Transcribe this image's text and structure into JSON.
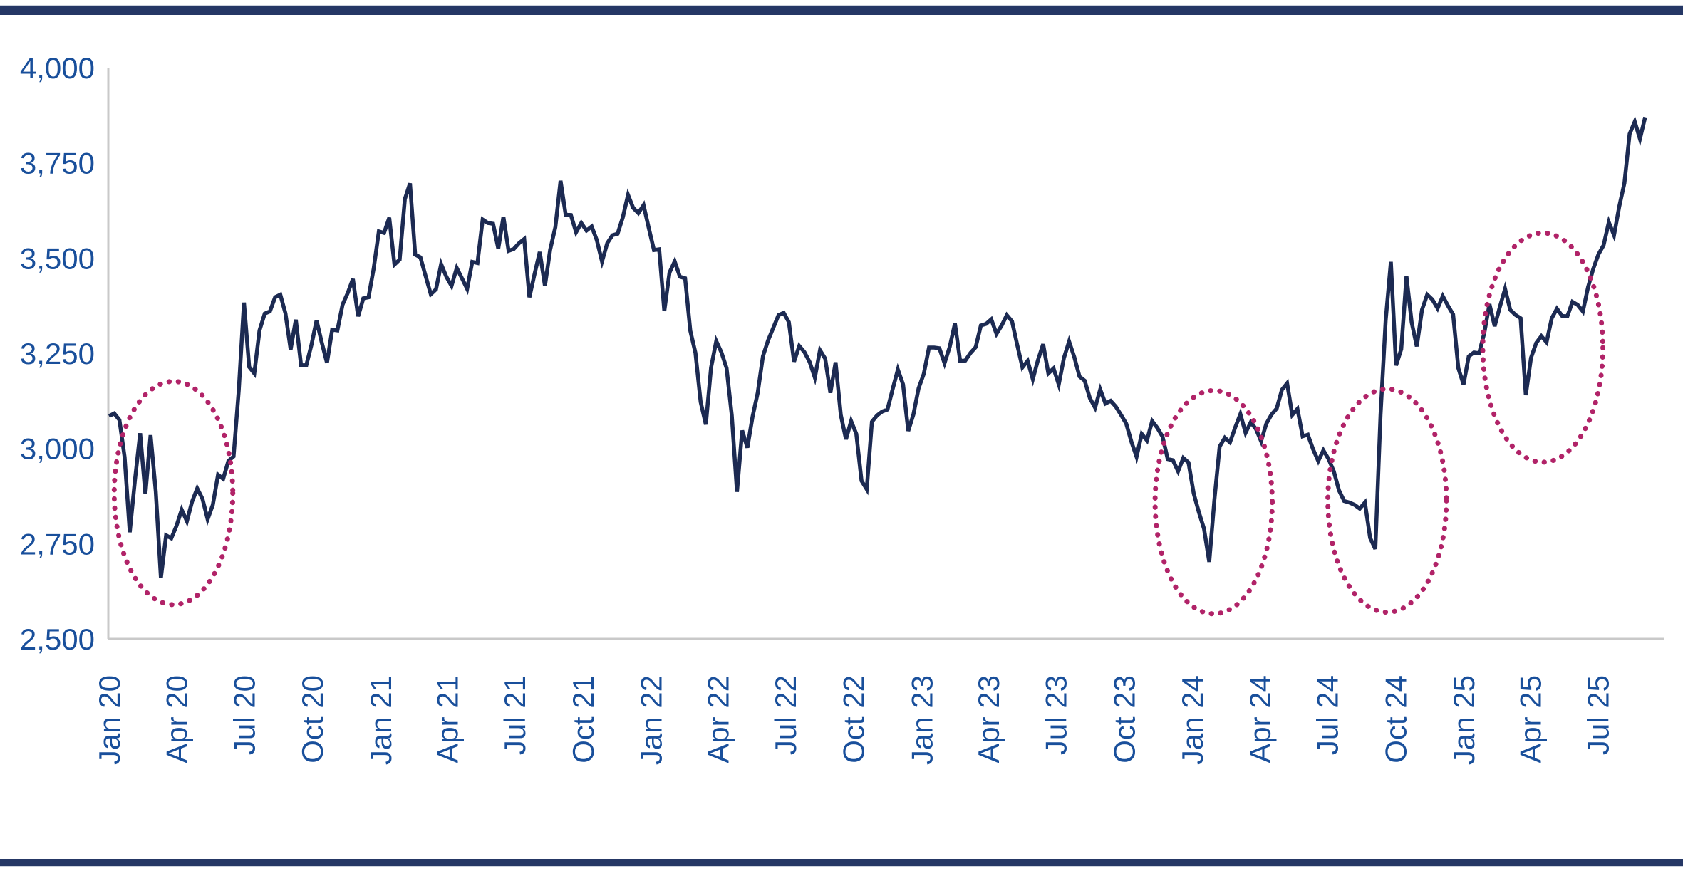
{
  "page": {
    "kind": "line-chart-figure",
    "background": "#ffffff",
    "top_border_color": "#253765",
    "bottom_border_color": "#253765"
  },
  "chart_data": {
    "type": "line",
    "title": "",
    "xlabel": "",
    "ylabel": "",
    "ylim": [
      2500,
      4000
    ],
    "grid": false,
    "legend": false,
    "axis_line_color": "#c9c9c9",
    "tick_label_color": "#194f9b",
    "line_color": "#1c2a52",
    "annotation_color": "#b12368",
    "y_ticks": [
      {
        "label": "4,000",
        "value": 4000
      },
      {
        "label": "3,750",
        "value": 3750
      },
      {
        "label": "3,500",
        "value": 3500
      },
      {
        "label": "3,250",
        "value": 3250
      },
      {
        "label": "3,000",
        "value": 3000
      },
      {
        "label": "2,750",
        "value": 2750
      },
      {
        "label": "2,500",
        "value": 2500
      }
    ],
    "x_ticks": [
      {
        "label": "Jan 20",
        "day": 0
      },
      {
        "label": "Apr 20",
        "day": 91
      },
      {
        "label": "Jul 20",
        "day": 182
      },
      {
        "label": "Oct 20",
        "day": 274
      },
      {
        "label": "Jan 21",
        "day": 366
      },
      {
        "label": "Apr 21",
        "day": 456
      },
      {
        "label": "Jul 21",
        "day": 547
      },
      {
        "label": "Oct 21",
        "day": 639
      },
      {
        "label": "Jan 22",
        "day": 731
      },
      {
        "label": "Apr 22",
        "day": 821
      },
      {
        "label": "Jul 22",
        "day": 912
      },
      {
        "label": "Oct 22",
        "day": 1004
      },
      {
        "label": "Jan 23",
        "day": 1096
      },
      {
        "label": "Apr 23",
        "day": 1186
      },
      {
        "label": "Jul 23",
        "day": 1277
      },
      {
        "label": "Oct 23",
        "day": 1369
      },
      {
        "label": "Jan 24",
        "day": 1461
      },
      {
        "label": "Apr 24",
        "day": 1552
      },
      {
        "label": "Jul 24",
        "day": 1643
      },
      {
        "label": "Oct 24",
        "day": 1735
      },
      {
        "label": "Jan 25",
        "day": 1827
      },
      {
        "label": "Apr 25",
        "day": 1917
      },
      {
        "label": "Jul 25",
        "day": 2008
      }
    ],
    "series": [
      {
        "name": "index-price-line",
        "sampling": "weekly",
        "days_per_point": 7,
        "values": [
          3085,
          3092,
          3075,
          2977,
          2780,
          2917,
          3040,
          2880,
          3035,
          2887,
          2660,
          2772,
          2764,
          2797,
          2839,
          2809,
          2860,
          2895,
          2868,
          2814,
          2852,
          2931,
          2920,
          2967,
          2979,
          3153,
          3383,
          3214,
          3197,
          3310,
          3354,
          3360,
          3397,
          3404,
          3355,
          3260,
          3338,
          3219,
          3218,
          3272,
          3336,
          3278,
          3225,
          3312,
          3310,
          3378,
          3408,
          3445,
          3347,
          3394,
          3397,
          3473,
          3570,
          3566,
          3606,
          3483,
          3496,
          3655,
          3696,
          3509,
          3502,
          3453,
          3405,
          3418,
          3484,
          3451,
          3427,
          3474,
          3447,
          3419,
          3490,
          3487,
          3601,
          3592,
          3590,
          3525,
          3608,
          3519,
          3524,
          3539,
          3550,
          3397,
          3458,
          3516,
          3427,
          3522,
          3581,
          3703,
          3614,
          3613,
          3568,
          3592,
          3572,
          3583,
          3547,
          3491,
          3539,
          3560,
          3564,
          3607,
          3666,
          3632,
          3618,
          3639,
          3579,
          3521,
          3523,
          3361,
          3462,
          3491,
          3451,
          3447,
          3309,
          3251,
          3122,
          3063,
          3212,
          3282,
          3252,
          3211,
          3087,
          2886,
          3047,
          3002,
          3084,
          3146,
          3242,
          3284,
          3317,
          3350,
          3356,
          3332,
          3228,
          3269,
          3253,
          3227,
          3186,
          3258,
          3236,
          3146,
          3226,
          3088,
          3024,
          3072,
          3038,
          2915,
          2893,
          3070,
          3087,
          3097,
          3102,
          3156,
          3207,
          3168,
          3046,
          3089,
          3158,
          3196,
          3265,
          3265,
          3263,
          3224,
          3267,
          3328,
          3230,
          3231,
          3251,
          3266,
          3323,
          3327,
          3339,
          3301,
          3323,
          3350,
          3334,
          3272,
          3213,
          3230,
          3182,
          3232,
          3274,
          3197,
          3210,
          3168,
          3238,
          3281,
          3240,
          3189,
          3178,
          3132,
          3107,
          3155,
          3118,
          3125,
          3110,
          3088,
          3065,
          3018,
          2978,
          3038,
          3021,
          3072,
          3054,
          3031,
          2972,
          2969,
          2940,
          2975,
          2963,
          2882,
          2833,
          2789,
          2702,
          2866,
          3005,
          3028,
          3016,
          3055,
          3090,
          3041,
          3069,
          3051,
          3019,
          3065,
          3089,
          3105,
          3154,
          3171,
          3088,
          3104,
          3032,
          3036,
          2998,
          2967,
          2995,
          2972,
          2940,
          2890,
          2862,
          2858,
          2852,
          2842,
          2858,
          2765,
          2736,
          3088,
          3336,
          3490,
          3218,
          3261,
          3452,
          3331,
          3268,
          3364,
          3404,
          3391,
          3368,
          3400,
          3375,
          3352,
          3211,
          3168,
          3242,
          3252,
          3250,
          3303,
          3379,
          3321,
          3372,
          3419,
          3364,
          3351,
          3342,
          3140,
          3238,
          3277,
          3295,
          3279,
          3342,
          3367,
          3348,
          3347,
          3385,
          3377,
          3360,
          3424,
          3472,
          3510,
          3534,
          3594,
          3560,
          3635,
          3697,
          3826,
          3858,
          3813,
          3870
        ]
      }
    ],
    "annotations": [
      {
        "shape": "dotted-ellipse",
        "label": "drawdown-2020-covid",
        "center_day": 87,
        "center_value": 2883,
        "radius_days": 80,
        "radius_value": 293
      },
      {
        "shape": "dotted-ellipse",
        "label": "drawdown-2024-january",
        "center_day": 1490,
        "center_value": 2859,
        "radius_days": 79,
        "radius_value": 293
      },
      {
        "shape": "dotted-ellipse",
        "label": "drawdown-2024-september",
        "center_day": 1724,
        "center_value": 2863,
        "radius_days": 80,
        "radius_value": 293
      },
      {
        "shape": "dotted-ellipse",
        "label": "drawdown-2025-april",
        "center_day": 1934,
        "center_value": 3265,
        "radius_days": 81,
        "radius_value": 301
      }
    ]
  }
}
